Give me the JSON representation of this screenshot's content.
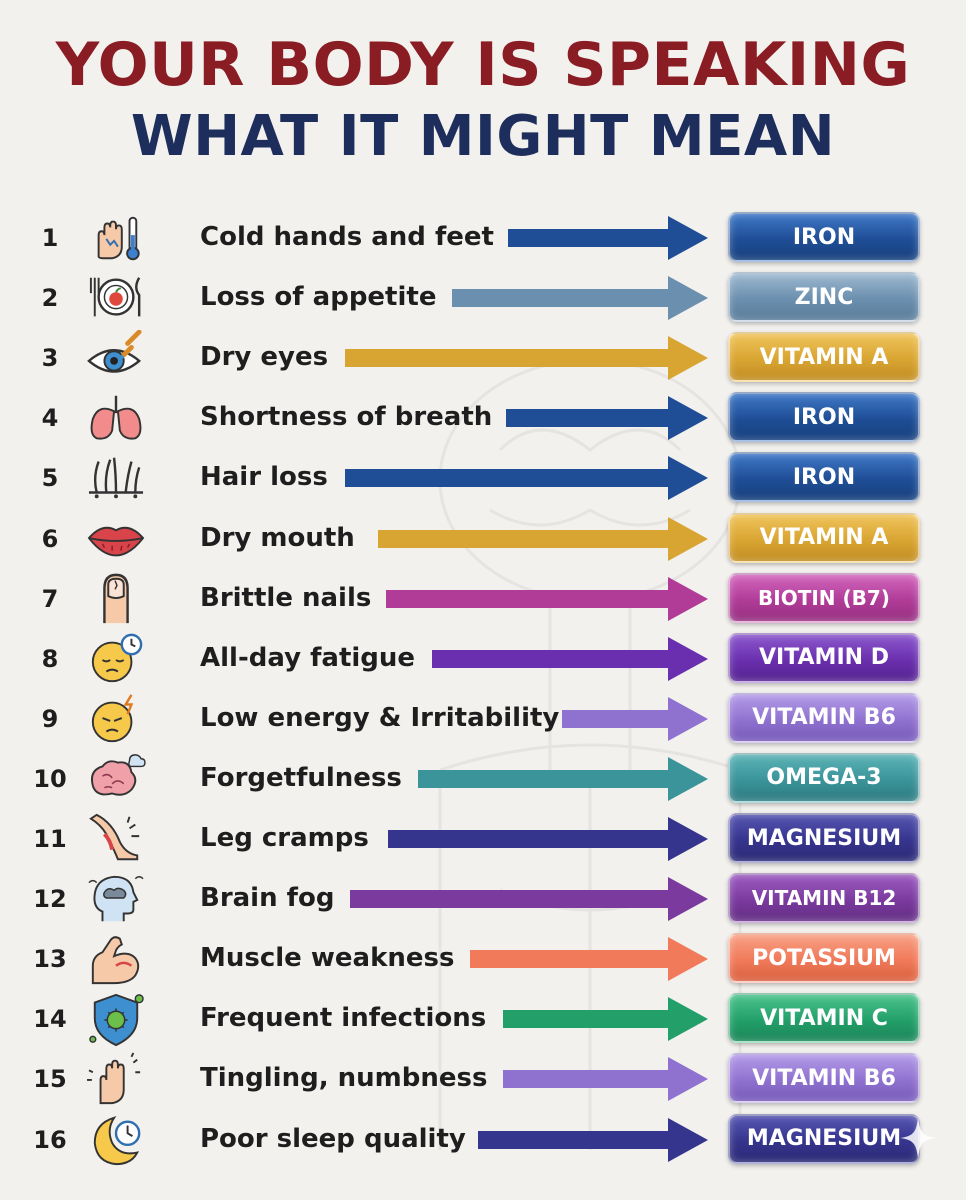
{
  "title_line1": "YOUR BODY IS SPEAKING",
  "title_line2": "WHAT IT MIGHT MEAN",
  "items": [
    {
      "num": "1",
      "symptom": "Cold hands and feet",
      "nutrient": "IRON",
      "icon": "cold-hand-thermometer-icon",
      "color": "#1f4e96"
    },
    {
      "num": "2",
      "symptom": "Loss of appetite",
      "nutrient": "ZINC",
      "icon": "plate-apple-icon",
      "color": "#6b8fae"
    },
    {
      "num": "3",
      "symptom": "Dry eyes",
      "nutrient": "VITAMIN A",
      "icon": "eye-dropper-icon",
      "color": "#d9a532"
    },
    {
      "num": "4",
      "symptom": "Shortness of breath",
      "nutrient": "IRON",
      "icon": "lungs-icon",
      "color": "#1f4e96"
    },
    {
      "num": "5",
      "symptom": "Hair loss",
      "nutrient": "IRON",
      "icon": "hair-follicle-icon",
      "color": "#1f4e96"
    },
    {
      "num": "6",
      "symptom": "Dry mouth",
      "nutrient": "VITAMIN A",
      "icon": "lips-icon",
      "color": "#d9a532"
    },
    {
      "num": "7",
      "symptom": "Brittle nails",
      "nutrient": "BIOTIN (B7)",
      "icon": "nail-icon",
      "color": "#b03c98"
    },
    {
      "num": "8",
      "symptom": "All-day fatigue",
      "nutrient": "VITAMIN D",
      "icon": "tired-face-clock-icon",
      "color": "#6a2fae"
    },
    {
      "num": "9",
      "symptom": "Low energy & Irritability",
      "nutrient": "VITAMIN B6",
      "icon": "irritated-face-icon",
      "color": "#8f72d0"
    },
    {
      "num": "10",
      "symptom": "Forgetfulness",
      "nutrient": "OMEGA-3",
      "icon": "brain-cloud-icon",
      "color": "#3a9499"
    },
    {
      "num": "11",
      "symptom": "Leg cramps",
      "nutrient": "MAGNESIUM",
      "icon": "leg-cramp-icon",
      "color": "#36358e"
    },
    {
      "num": "12",
      "symptom": "Brain fog",
      "nutrient": "VITAMIN B12",
      "icon": "head-fog-icon",
      "color": "#7a3a9e"
    },
    {
      "num": "13",
      "symptom": "Muscle weakness",
      "nutrient": "POTASSIUM",
      "icon": "flexed-arm-icon",
      "color": "#f07a5a"
    },
    {
      "num": "14",
      "symptom": "Frequent infections",
      "nutrient": "VITAMIN C",
      "icon": "shield-virus-icon",
      "color": "#23a06a"
    },
    {
      "num": "15",
      "symptom": "Tingling, numbness",
      "nutrient": "VITAMIN B6",
      "icon": "tingling-hand-icon",
      "color": "#8f72d0"
    },
    {
      "num": "16",
      "symptom": "Poor sleep quality",
      "nutrient": "MAGNESIUM",
      "icon": "moon-clock-icon",
      "color": "#36358e"
    }
  ]
}
